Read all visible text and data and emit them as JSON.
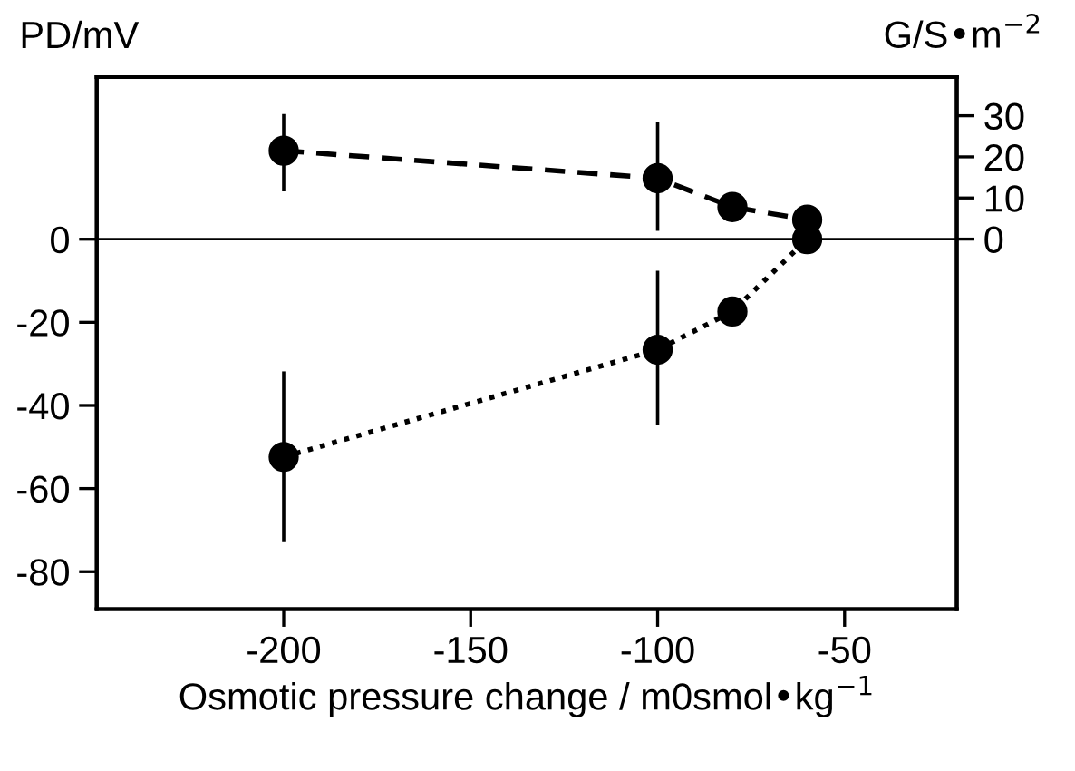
{
  "chart_data": {
    "type": "line",
    "xlabel": "Osmotic pressure change / m0smol•kg$^{−1}$",
    "ylabel": "PD/mV",
    "y2label": "G/S•m$^{−2}$",
    "x": [
      -200,
      -100,
      -80,
      -60
    ],
    "xlim": [
      -250,
      -20
    ],
    "xticks": [
      -200,
      -150,
      -100,
      -50
    ],
    "ylim": [
      -89,
      39
    ],
    "yticks": [
      -80,
      -60,
      -40,
      -20,
      0
    ],
    "y2lim": [
      -90,
      39.4
    ],
    "y2ticks": [
      0,
      10,
      20,
      30
    ],
    "series": [
      {
        "color": "#000000",
        "axis": "y2",
        "line_style": "dashed",
        "values": [
          21.5,
          14.8,
          7.8,
          4.7
        ],
        "errors": [
          [
            12,
            30
          ],
          [
            2.4,
            28
          ],
          null,
          null
        ]
      },
      {
        "color": "#000000",
        "axis": "y",
        "line_style": "dotted",
        "values": [
          -52.4,
          -26.6,
          -17.4,
          0
        ],
        "errors": [
          [
            -72.3,
            -32.2
          ],
          [
            -44.3,
            -8
          ],
          null,
          null
        ]
      }
    ],
    "marker": "circle",
    "ref_lines": [
      {
        "axis": "y",
        "value": 0,
        "color": "#000000"
      }
    ],
    "grid": false,
    "legend": false
  }
}
